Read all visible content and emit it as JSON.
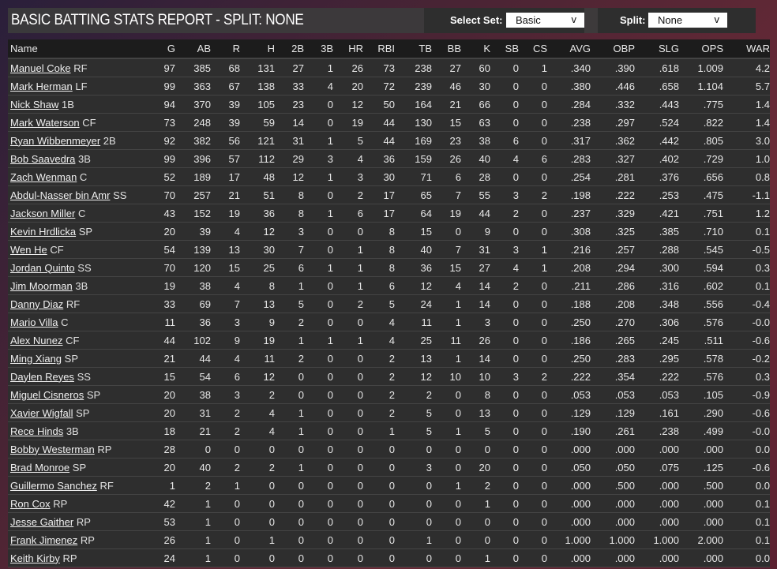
{
  "header": {
    "title": "BASIC BATTING STATS REPORT - SPLIT: NONE",
    "select_set_label": "Select Set:",
    "select_set_value": "Basic",
    "split_label": "Split:",
    "split_value": "None",
    "chevron": "v"
  },
  "table": {
    "columns": [
      "Name",
      "G",
      "AB",
      "R",
      "H",
      "2B",
      "3B",
      "HR",
      "RBI",
      "TB",
      "BB",
      "K",
      "SB",
      "CS",
      "AVG",
      "OBP",
      "SLG",
      "OPS",
      "WAR"
    ],
    "rows": [
      {
        "name": "Manuel Coke",
        "pos": "RF",
        "stats": [
          "97",
          "385",
          "68",
          "131",
          "27",
          "1",
          "26",
          "73",
          "238",
          "27",
          "60",
          "0",
          "1",
          ".340",
          ".390",
          ".618",
          "1.009",
          "4.2"
        ]
      },
      {
        "name": "Mark Herman",
        "pos": "LF",
        "stats": [
          "99",
          "363",
          "67",
          "138",
          "33",
          "4",
          "20",
          "72",
          "239",
          "46",
          "30",
          "0",
          "0",
          ".380",
          ".446",
          ".658",
          "1.104",
          "5.7"
        ]
      },
      {
        "name": "Nick Shaw",
        "pos": "1B",
        "stats": [
          "94",
          "370",
          "39",
          "105",
          "23",
          "0",
          "12",
          "50",
          "164",
          "21",
          "66",
          "0",
          "0",
          ".284",
          ".332",
          ".443",
          ".775",
          "1.4"
        ]
      },
      {
        "name": "Mark Waterson",
        "pos": "CF",
        "stats": [
          "73",
          "248",
          "39",
          "59",
          "14",
          "0",
          "19",
          "44",
          "130",
          "15",
          "63",
          "0",
          "0",
          ".238",
          ".297",
          ".524",
          ".822",
          "1.4"
        ]
      },
      {
        "name": "Ryan Wibbenmeyer",
        "pos": "2B",
        "stats": [
          "92",
          "382",
          "56",
          "121",
          "31",
          "1",
          "5",
          "44",
          "169",
          "23",
          "38",
          "6",
          "0",
          ".317",
          ".362",
          ".442",
          ".805",
          "3.0"
        ]
      },
      {
        "name": "Bob Saavedra",
        "pos": "3B",
        "stats": [
          "99",
          "396",
          "57",
          "112",
          "29",
          "3",
          "4",
          "36",
          "159",
          "26",
          "40",
          "4",
          "6",
          ".283",
          ".327",
          ".402",
          ".729",
          "1.0"
        ]
      },
      {
        "name": "Zach Wenman",
        "pos": "C",
        "stats": [
          "52",
          "189",
          "17",
          "48",
          "12",
          "1",
          "3",
          "30",
          "71",
          "6",
          "28",
          "0",
          "0",
          ".254",
          ".281",
          ".376",
          ".656",
          "0.8"
        ]
      },
      {
        "name": "Abdul-Nasser bin Amr",
        "pos": "SS",
        "stats": [
          "70",
          "257",
          "21",
          "51",
          "8",
          "0",
          "2",
          "17",
          "65",
          "7",
          "55",
          "3",
          "2",
          ".198",
          ".222",
          ".253",
          ".475",
          "-1.1"
        ]
      },
      {
        "name": "Jackson Miller",
        "pos": "C",
        "stats": [
          "43",
          "152",
          "19",
          "36",
          "8",
          "1",
          "6",
          "17",
          "64",
          "19",
          "44",
          "2",
          "0",
          ".237",
          ".329",
          ".421",
          ".751",
          "1.2"
        ]
      },
      {
        "name": "Kevin Hrdlicka",
        "pos": "SP",
        "stats": [
          "20",
          "39",
          "4",
          "12",
          "3",
          "0",
          "0",
          "8",
          "15",
          "0",
          "9",
          "0",
          "0",
          ".308",
          ".325",
          ".385",
          ".710",
          "0.1"
        ]
      },
      {
        "name": "Wen He",
        "pos": "CF",
        "stats": [
          "54",
          "139",
          "13",
          "30",
          "7",
          "0",
          "1",
          "8",
          "40",
          "7",
          "31",
          "3",
          "1",
          ".216",
          ".257",
          ".288",
          ".545",
          "-0.5"
        ]
      },
      {
        "name": "Jordan Quinto",
        "pos": "SS",
        "stats": [
          "70",
          "120",
          "15",
          "25",
          "6",
          "1",
          "1",
          "8",
          "36",
          "15",
          "27",
          "4",
          "1",
          ".208",
          ".294",
          ".300",
          ".594",
          "0.3"
        ]
      },
      {
        "name": "Jim Moorman",
        "pos": "3B",
        "stats": [
          "19",
          "38",
          "4",
          "8",
          "1",
          "0",
          "1",
          "6",
          "12",
          "4",
          "14",
          "2",
          "0",
          ".211",
          ".286",
          ".316",
          ".602",
          "0.1"
        ]
      },
      {
        "name": "Danny Diaz",
        "pos": "RF",
        "stats": [
          "33",
          "69",
          "7",
          "13",
          "5",
          "0",
          "2",
          "5",
          "24",
          "1",
          "14",
          "0",
          "0",
          ".188",
          ".208",
          ".348",
          ".556",
          "-0.4"
        ]
      },
      {
        "name": "Mario Villa",
        "pos": "C",
        "stats": [
          "11",
          "36",
          "3",
          "9",
          "2",
          "0",
          "0",
          "4",
          "11",
          "1",
          "3",
          "0",
          "0",
          ".250",
          ".270",
          ".306",
          ".576",
          "-0.0"
        ]
      },
      {
        "name": "Alex Nunez",
        "pos": "CF",
        "stats": [
          "44",
          "102",
          "9",
          "19",
          "1",
          "1",
          "1",
          "4",
          "25",
          "11",
          "26",
          "0",
          "0",
          ".186",
          ".265",
          ".245",
          ".511",
          "-0.6"
        ]
      },
      {
        "name": "Ming Xiang",
        "pos": "SP",
        "stats": [
          "21",
          "44",
          "4",
          "11",
          "2",
          "0",
          "0",
          "2",
          "13",
          "1",
          "14",
          "0",
          "0",
          ".250",
          ".283",
          ".295",
          ".578",
          "-0.2"
        ]
      },
      {
        "name": "Daylen Reyes",
        "pos": "SS",
        "stats": [
          "15",
          "54",
          "6",
          "12",
          "0",
          "0",
          "0",
          "2",
          "12",
          "10",
          "10",
          "3",
          "2",
          ".222",
          ".354",
          ".222",
          ".576",
          "0.3"
        ]
      },
      {
        "name": "Miguel Cisneros",
        "pos": "SP",
        "stats": [
          "20",
          "38",
          "3",
          "2",
          "0",
          "0",
          "0",
          "2",
          "2",
          "0",
          "8",
          "0",
          "0",
          ".053",
          ".053",
          ".053",
          ".105",
          "-0.9"
        ]
      },
      {
        "name": "Xavier Wigfall",
        "pos": "SP",
        "stats": [
          "20",
          "31",
          "2",
          "4",
          "1",
          "0",
          "0",
          "2",
          "5",
          "0",
          "13",
          "0",
          "0",
          ".129",
          ".129",
          ".161",
          ".290",
          "-0.6"
        ]
      },
      {
        "name": "Rece Hinds",
        "pos": "3B",
        "stats": [
          "18",
          "21",
          "2",
          "4",
          "1",
          "0",
          "0",
          "1",
          "5",
          "1",
          "5",
          "0",
          "0",
          ".190",
          ".261",
          ".238",
          ".499",
          "-0.0"
        ]
      },
      {
        "name": "Bobby Westerman",
        "pos": "RP",
        "stats": [
          "28",
          "0",
          "0",
          "0",
          "0",
          "0",
          "0",
          "0",
          "0",
          "0",
          "0",
          "0",
          "0",
          ".000",
          ".000",
          ".000",
          ".000",
          "0.0"
        ]
      },
      {
        "name": "Brad Monroe",
        "pos": "SP",
        "stats": [
          "20",
          "40",
          "2",
          "2",
          "1",
          "0",
          "0",
          "0",
          "3",
          "0",
          "20",
          "0",
          "0",
          ".050",
          ".050",
          ".075",
          ".125",
          "-0.6"
        ]
      },
      {
        "name": "Guillermo Sanchez",
        "pos": "RF",
        "stats": [
          "1",
          "2",
          "1",
          "0",
          "0",
          "0",
          "0",
          "0",
          "0",
          "1",
          "2",
          "0",
          "0",
          ".000",
          ".500",
          ".000",
          ".500",
          "0.0"
        ]
      },
      {
        "name": "Ron Cox",
        "pos": "RP",
        "stats": [
          "42",
          "1",
          "0",
          "0",
          "0",
          "0",
          "0",
          "0",
          "0",
          "0",
          "1",
          "0",
          "0",
          ".000",
          ".000",
          ".000",
          ".000",
          "0.1"
        ]
      },
      {
        "name": "Jesse Gaither",
        "pos": "RP",
        "stats": [
          "53",
          "1",
          "0",
          "0",
          "0",
          "0",
          "0",
          "0",
          "0",
          "0",
          "0",
          "0",
          "0",
          ".000",
          ".000",
          ".000",
          ".000",
          "0.1"
        ]
      },
      {
        "name": "Frank Jimenez",
        "pos": "RP",
        "stats": [
          "26",
          "1",
          "0",
          "1",
          "0",
          "0",
          "0",
          "0",
          "1",
          "0",
          "0",
          "0",
          "0",
          "1.000",
          "1.000",
          "1.000",
          "2.000",
          "0.1"
        ]
      },
      {
        "name": "Keith Kirby",
        "pos": "RP",
        "stats": [
          "24",
          "1",
          "0",
          "0",
          "0",
          "0",
          "0",
          "0",
          "0",
          "0",
          "1",
          "0",
          "0",
          ".000",
          ".000",
          ".000",
          ".000",
          "0.0"
        ]
      }
    ]
  }
}
